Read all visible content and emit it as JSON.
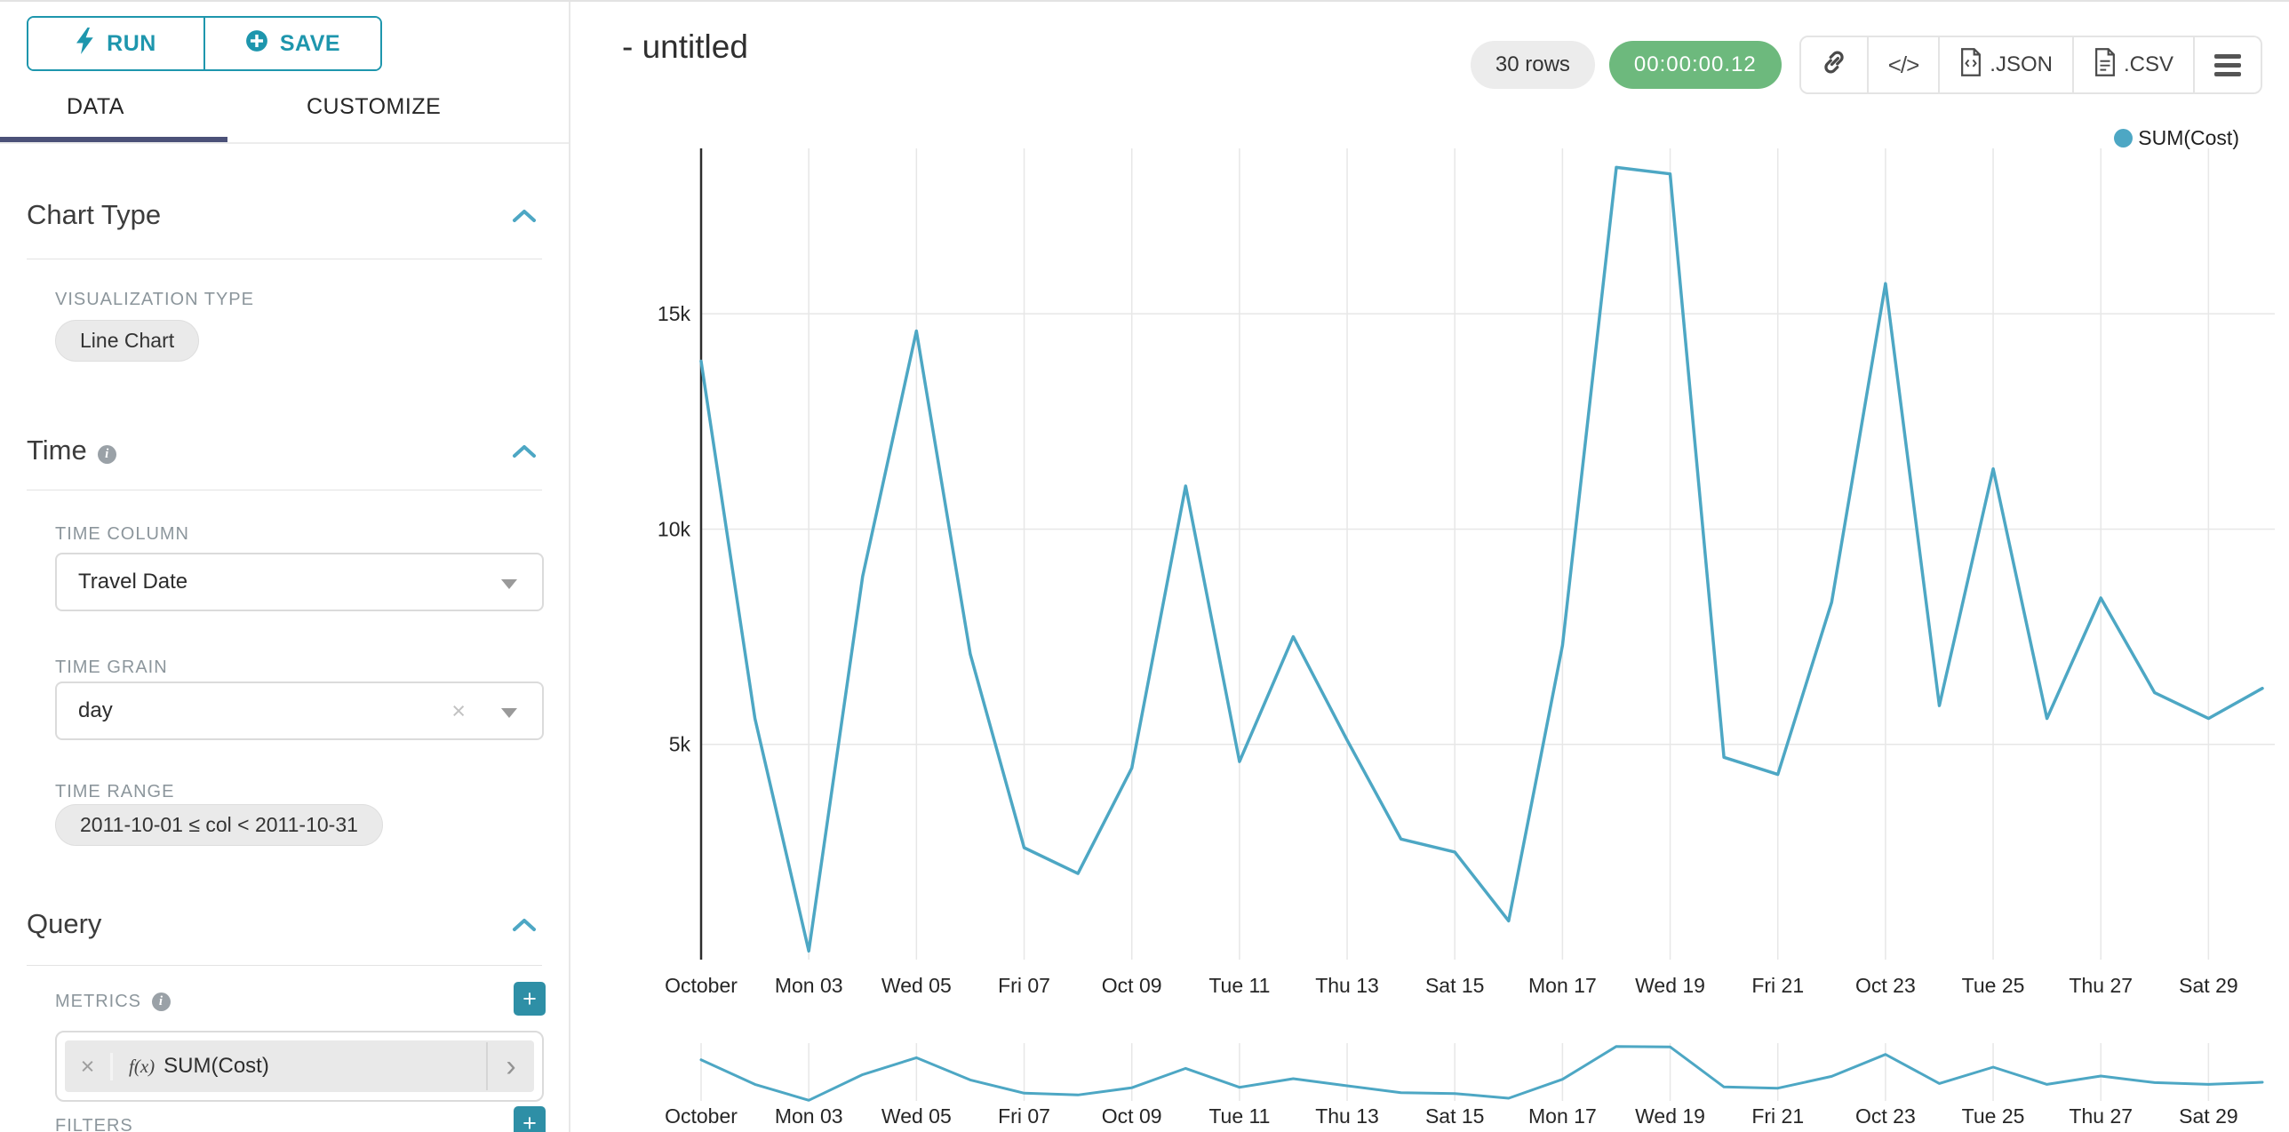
{
  "toolbar": {
    "run_label": "RUN",
    "save_label": "SAVE"
  },
  "tabs": {
    "data": "DATA",
    "customize": "CUSTOMIZE"
  },
  "sections": {
    "chart_type": {
      "title": "Chart Type",
      "viz_type_label": "VISUALIZATION TYPE",
      "viz_type_value": "Line Chart"
    },
    "time": {
      "title": "Time",
      "time_column_label": "TIME COLUMN",
      "time_column_value": "Travel Date",
      "time_grain_label": "TIME GRAIN",
      "time_grain_value": "day",
      "time_range_label": "TIME RANGE",
      "time_range_value": "2011-10-01 ≤ col < 2011-10-31"
    },
    "query": {
      "title": "Query",
      "metrics_label": "METRICS",
      "metric_fx": "f(x)",
      "metric_value": "SUM(Cost)",
      "filters_label": "FILTERS"
    }
  },
  "header": {
    "title": "- untitled",
    "rows_badge": "30 rows",
    "timer": "00:00:00.12",
    "json_label": ".JSON",
    "csv_label": ".CSV"
  },
  "legend": {
    "label": "SUM(Cost)"
  },
  "icons": {
    "run": "lightning-bolt-icon",
    "save": "plus-circle-icon",
    "collapse": "chevron-up-icon",
    "info": "info-icon",
    "toolbar": [
      "link-icon",
      "code-icon",
      "json-file-icon",
      "csv-file-icon",
      "menu-icon"
    ]
  },
  "colors": {
    "accent_teal": "#1e96ad",
    "tab_underline": "#4b5178",
    "line": "#4da7c4",
    "timer_green": "#6db97d",
    "add_button": "#2e8fa6"
  },
  "chart_data": {
    "type": "line",
    "title": "- untitled",
    "legend_position": "top-right",
    "grid": true,
    "has_context_brush": true,
    "x_start_date": "2011-10-01",
    "x_dates": [
      "2011-10-01",
      "2011-10-02",
      "2011-10-03",
      "2011-10-04",
      "2011-10-05",
      "2011-10-06",
      "2011-10-07",
      "2011-10-08",
      "2011-10-09",
      "2011-10-10",
      "2011-10-11",
      "2011-10-12",
      "2011-10-13",
      "2011-10-14",
      "2011-10-15",
      "2011-10-16",
      "2011-10-17",
      "2011-10-18",
      "2011-10-19",
      "2011-10-20",
      "2011-10-21",
      "2011-10-22",
      "2011-10-23",
      "2011-10-24",
      "2011-10-25",
      "2011-10-26",
      "2011-10-27",
      "2011-10-28",
      "2011-10-29",
      "2011-10-30"
    ],
    "series": [
      {
        "name": "SUM(Cost)",
        "values": [
          13900,
          5600,
          200,
          8900,
          14600,
          7100,
          2600,
          2000,
          4450,
          11000,
          4600,
          7500,
          5100,
          2800,
          2500,
          900,
          7300,
          18400,
          18250,
          4700,
          4300,
          8300,
          15700,
          5900,
          11400,
          5600,
          8400,
          6200,
          5600,
          6300
        ]
      }
    ],
    "x_tick_labels": [
      "October",
      "Mon 03",
      "Wed 05",
      "Fri 07",
      "Oct 09",
      "Tue 11",
      "Thu 13",
      "Sat 15",
      "Mon 17",
      "Wed 19",
      "Fri 21",
      "Oct 23",
      "Tue 25",
      "Thu 27",
      "Sat 29"
    ],
    "y_ticks": [
      5000,
      10000,
      15000
    ],
    "y_tick_labels": [
      "5k",
      "10k",
      "15k"
    ],
    "ylim": [
      0,
      18600
    ],
    "line_color": "#4da7c4"
  }
}
